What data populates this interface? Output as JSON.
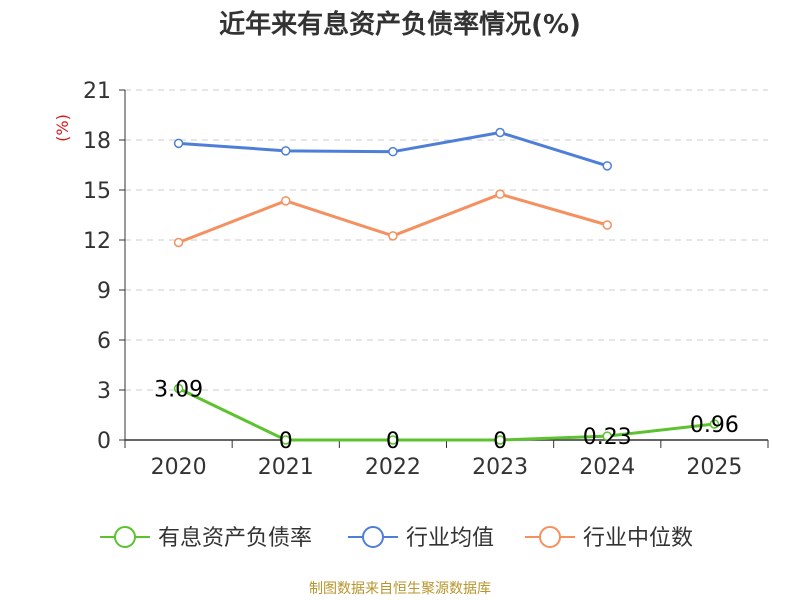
{
  "chart_data": {
    "type": "line",
    "title": "近年来有息资产负债率情况(%)",
    "ylabel": "(%)",
    "categories": [
      "2020",
      "2021",
      "2022",
      "2023",
      "2024",
      "2025"
    ],
    "ylim": [
      0,
      21
    ],
    "yticks": [
      "0",
      "3",
      "6",
      "9",
      "12",
      "15",
      "18",
      "21"
    ],
    "grid": "horizontal dashed",
    "legend_position": "bottom",
    "series": [
      {
        "name": "有息资产负债率",
        "color": "#5dc22f",
        "values": [
          3.09,
          0,
          0,
          0,
          0.23,
          0.96
        ],
        "labels": [
          "3.09",
          "0",
          "0",
          "0",
          "0.23",
          "0.96"
        ]
      },
      {
        "name": "行业均值",
        "color": "#4e7fd8",
        "values": [
          17.8,
          17.35,
          17.3,
          18.45,
          16.45,
          null
        ]
      },
      {
        "name": "行业中位数",
        "color": "#f59060",
        "values": [
          11.85,
          14.35,
          12.25,
          14.75,
          12.9,
          null
        ]
      }
    ]
  },
  "footer": {
    "source": "制图数据来自恒生聚源数据库"
  }
}
